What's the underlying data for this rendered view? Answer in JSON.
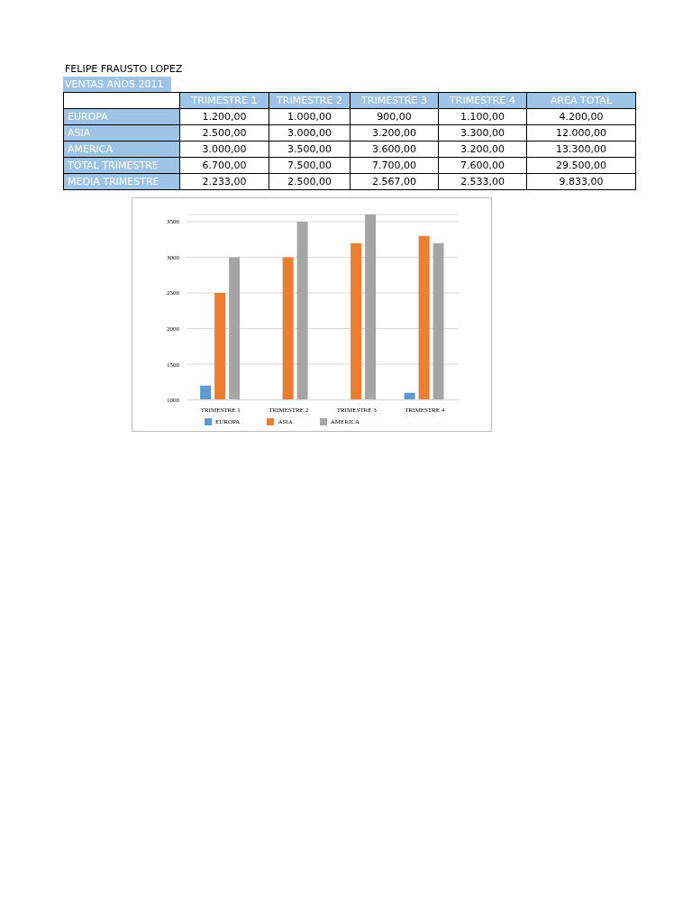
{
  "chart_data": {
    "type": "bar",
    "title": "FELIPE FRAUSTO LOPEZ",
    "subtitle": "VENTAS AÑOS 2011",
    "categories": [
      "TRIMESTRE 1",
      "TRIMESTRE 2",
      "TRIMESTRE 3",
      "TRIMESTRE 4"
    ],
    "series": [
      {
        "name": "EUROPA",
        "color": "#5b9bd5",
        "values": [
          1200,
          1000,
          null,
          1100
        ]
      },
      {
        "name": "ASIA",
        "color": "#ed7d31",
        "values": [
          2500,
          3000,
          3200,
          3300
        ]
      },
      {
        "name": "AMERICA",
        "color": "#a5a5a5",
        "values": [
          3000,
          3500,
          3600,
          3200
        ]
      }
    ],
    "annotations": [
      "TRIMESTRE 1",
      "TRIMESTRE 2",
      "TRIMESTRE 3",
      "TRIMESTRE 4",
      "AREA TOTAL",
      "EUROPA",
      "1.200,00",
      "1.000,00",
      "900,00",
      "1.100,00",
      "4.200,00",
      "ASIA",
      "2.500,00",
      "3.000,00",
      "3.200,00",
      "3.300,00",
      "12.000,00",
      "AMERICA",
      "3.000,00",
      "3.500,00",
      "3.600,00",
      "3.200,00",
      "13.300,00",
      "TOTAL TRIMESTRE",
      "6.700,00",
      "7.500,00",
      "7.700,00",
      "7.600,00",
      "29.500,00",
      "MEDIA TRIMESTRE",
      "2.233,00",
      "2.500,00",
      "2.567,00",
      "2.533,00",
      "9.833,00"
    ],
    "ylim": [
      1000,
      3600
    ],
    "yticks": [
      1000,
      1500,
      2000,
      2500,
      3000,
      3500
    ],
    "grid": "y",
    "legend": "bottom"
  }
}
